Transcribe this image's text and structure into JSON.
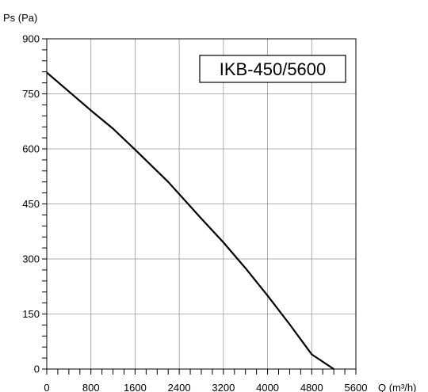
{
  "chart_data": {
    "type": "line",
    "title": "",
    "model_label": "IKB-450/5600",
    "ylabel": "Ps (Pa)",
    "xlabel": "Q (m³/h)",
    "xlim": [
      0,
      5600
    ],
    "ylim": [
      0,
      900
    ],
    "x_major_ticks": [
      0,
      800,
      1600,
      2400,
      3200,
      4000,
      4800,
      5600
    ],
    "x_tick_labels": [
      "0",
      "800",
      "1600",
      "2400",
      "3200",
      "4000",
      "4800",
      "5600"
    ],
    "y_major_ticks": [
      0,
      150,
      300,
      450,
      600,
      750,
      900
    ],
    "y_tick_labels": [
      "0",
      "150",
      "300",
      "450",
      "600",
      "750",
      "900"
    ],
    "x_minor_step": 200,
    "y_minor_step": 30,
    "grid": true,
    "series": [
      {
        "x": [
          0,
          800,
          1200,
          1600,
          2200,
          2800,
          3200,
          3600,
          4000,
          4400,
          4800,
          5200
        ],
        "y": [
          808,
          705,
          655,
          598,
          510,
          410,
          345,
          275,
          200,
          122,
          40,
          0
        ]
      }
    ]
  }
}
